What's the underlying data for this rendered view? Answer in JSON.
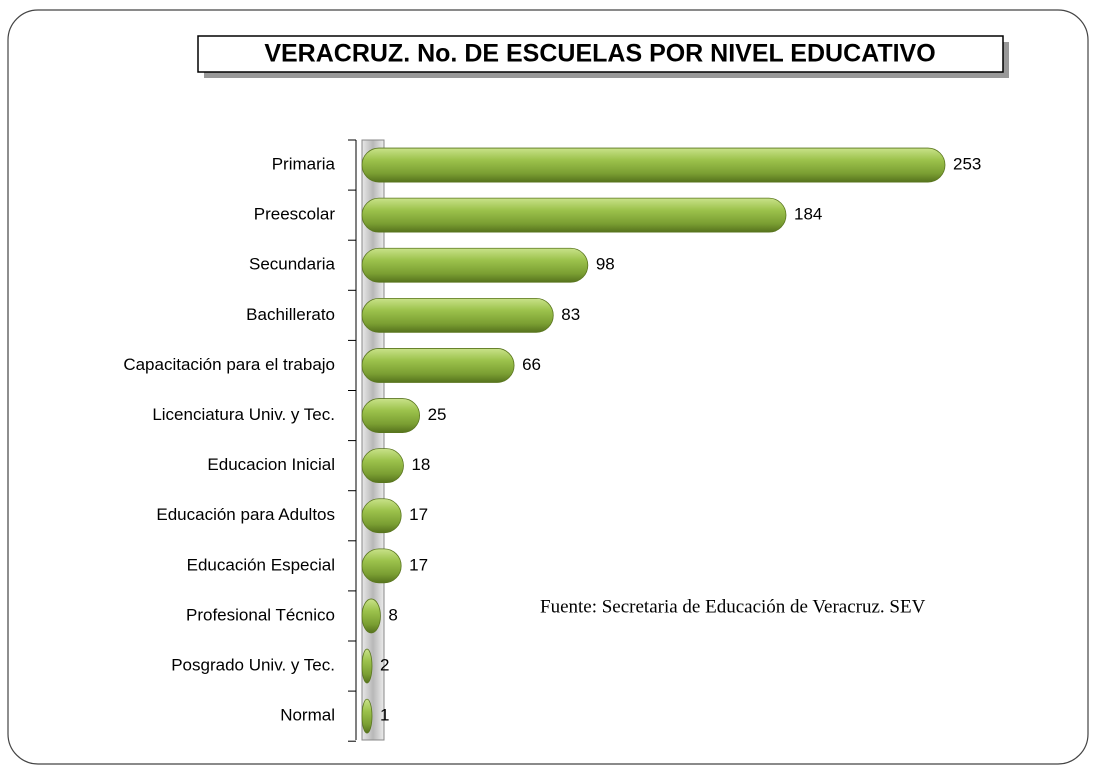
{
  "chart_data": {
    "type": "bar",
    "orientation": "horizontal",
    "title": "VERACRUZ. No. DE ESCUELAS POR NIVEL EDUCATIVO",
    "source": "Fuente: Secretaria de Educación de Veracruz. SEV",
    "categories": [
      "Primaria",
      "Preescolar",
      "Secundaria",
      "Bachillerato",
      "Capacitación para el trabajo",
      "Licenciatura Univ. y Tec.",
      "Educacion Inicial",
      "Educación para Adultos",
      "Educación Especial",
      "Profesional Técnico",
      "Posgrado Univ. y Tec.",
      "Normal"
    ],
    "values": [
      253,
      184,
      98,
      83,
      66,
      25,
      18,
      17,
      17,
      8,
      2,
      1
    ],
    "color": "#8db33f"
  }
}
